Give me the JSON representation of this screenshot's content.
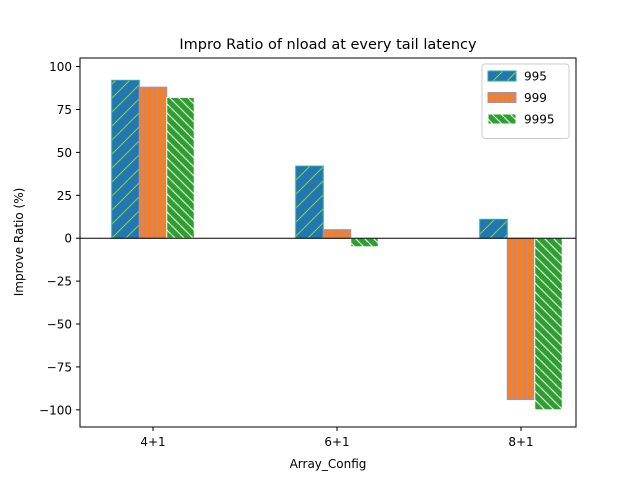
{
  "chart_data": {
    "type": "bar",
    "title": "Impro Ratio of nload at every tail latency",
    "xlabel": "Array_Config",
    "ylabel": "Improve Ratio (%)",
    "categories": [
      "4+1",
      "6+1",
      "8+1"
    ],
    "ylim": [
      -110,
      105
    ],
    "yticks": [
      100,
      75,
      50,
      25,
      0,
      -25,
      -50,
      -75,
      -100
    ],
    "ytick_labels": [
      "100",
      "75",
      "50",
      "25",
      "0",
      "−25",
      "−50",
      "−75",
      "−100"
    ],
    "grid": false,
    "legend_position": "top-right",
    "zero_line": true,
    "series": [
      {
        "name": "995",
        "values": [
          92,
          42,
          11
        ],
        "fill": "#1f77b4",
        "edge": "#2ca9a0",
        "hatch": "slash",
        "hatch_color": "#9acd32"
      },
      {
        "name": "999",
        "values": [
          88,
          5,
          -94
        ],
        "fill": "#ff7f0e",
        "edge": "#9b8fd0",
        "hatch": "vertical",
        "hatch_color": "#9b8fd0"
      },
      {
        "name": "9995",
        "values": [
          82,
          -5,
          -100
        ],
        "fill": "#2ca02c",
        "edge": "#ffffff",
        "hatch": "backslash",
        "hatch_color": "#ffffff"
      }
    ]
  }
}
